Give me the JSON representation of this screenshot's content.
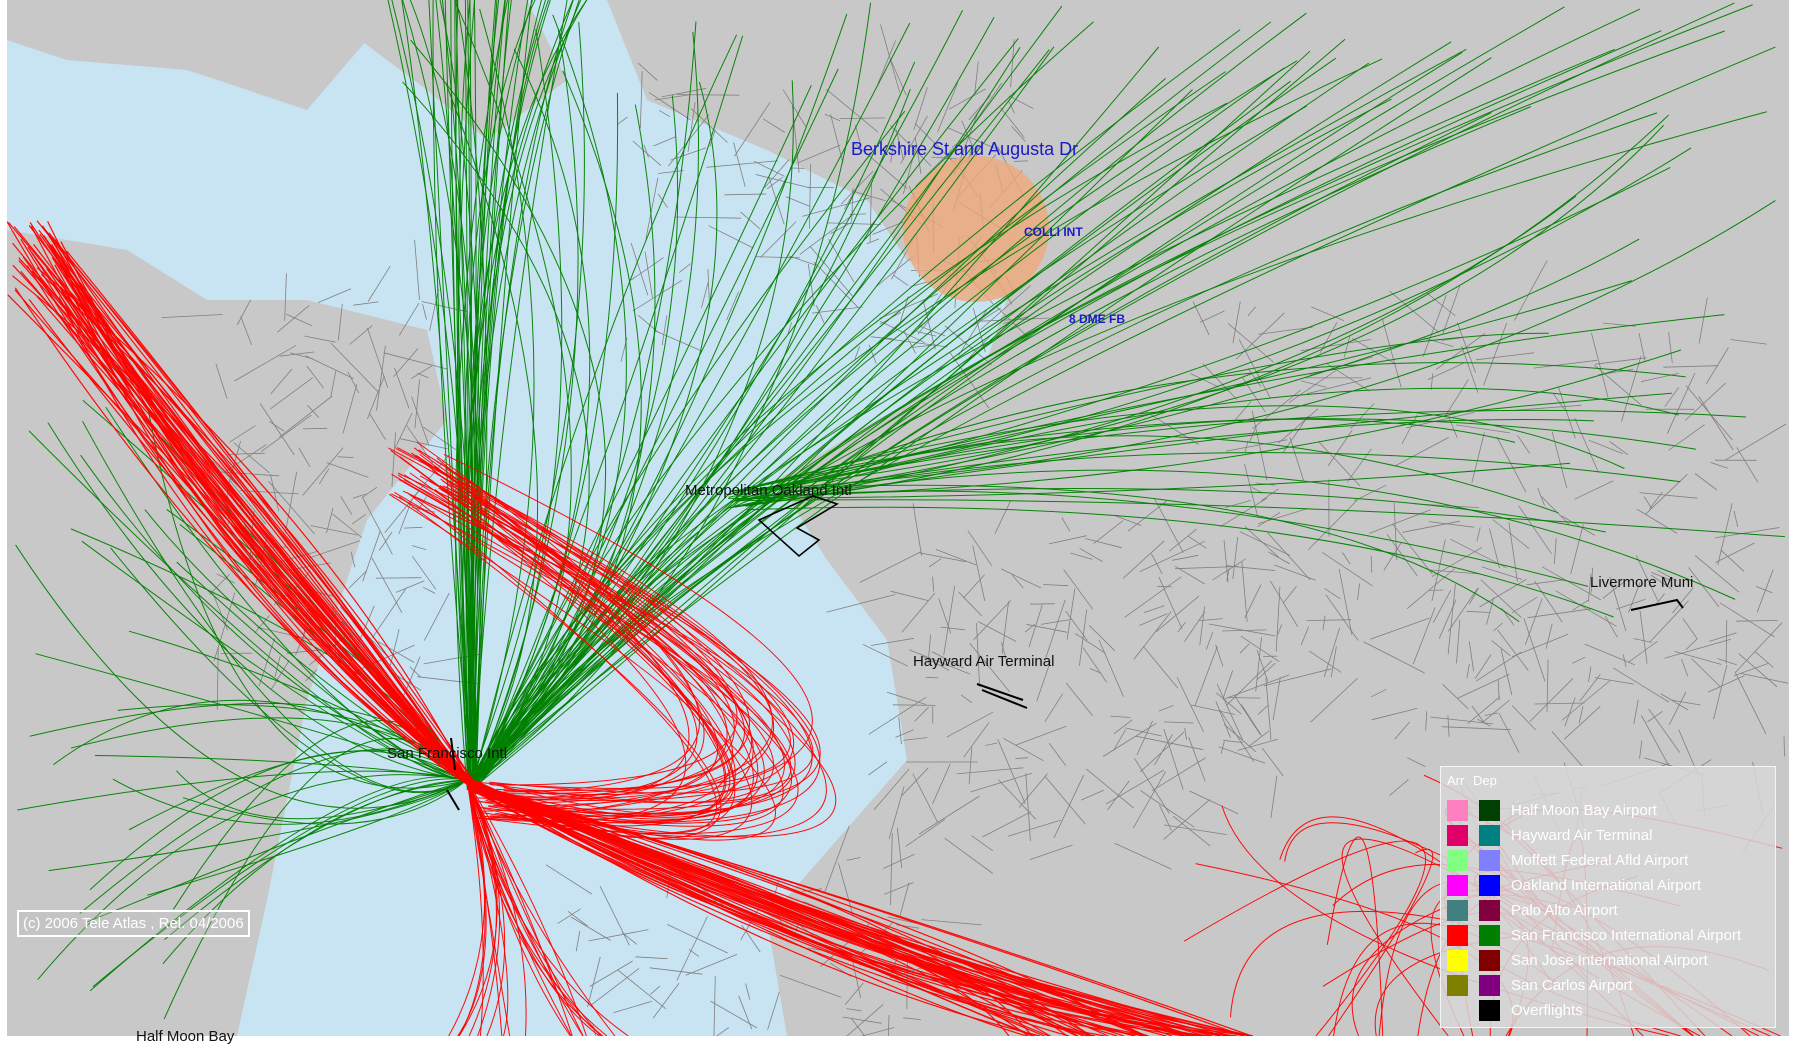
{
  "map": {
    "poi_label": "Berkshire St and Augusta Dr",
    "fixes": [
      "COLLI INT",
      "8 DME FB"
    ],
    "airports": [
      "Metropolitan Oakland Intl",
      "Hayward Air Terminal",
      "Livermore Muni",
      "San Francisco Intl",
      "Half Moon Bay"
    ],
    "copyright": "(c) 2006 Tele Atlas , Rel. 04/2006",
    "colors": {
      "water": "#c8e3f2",
      "land": "#c8c8c8",
      "roads": "#808080",
      "arrivals": "#ff0000",
      "departures": "#008000",
      "circle": "#f0a878"
    }
  },
  "legend": {
    "arr_label": "Arr",
    "dep_label": "Dep",
    "items": [
      {
        "name": "Half Moon Bay Airport",
        "arr": "#ff80c0",
        "dep": "#004000"
      },
      {
        "name": "Hayward Air Terminal",
        "arr": "#e0006a",
        "dep": "#008080"
      },
      {
        "name": "Moffett Federal Afld Airport",
        "arr": "#80ff80",
        "dep": "#8080ff"
      },
      {
        "name": "Oakland International Airport",
        "arr": "#ff00ff",
        "dep": "#0000ff"
      },
      {
        "name": "Palo Alto Airport",
        "arr": "#408080",
        "dep": "#800040"
      },
      {
        "name": "San Francisco International Airport",
        "arr": "#ff0000",
        "dep": "#008000"
      },
      {
        "name": "San Jose International Airport",
        "arr": "#ffff00",
        "dep": "#800000"
      },
      {
        "name": "San Carlos Airport",
        "arr": "#808000",
        "dep": "#800080"
      },
      {
        "name": "Overflights",
        "arr": "",
        "dep": "#000000"
      }
    ]
  }
}
